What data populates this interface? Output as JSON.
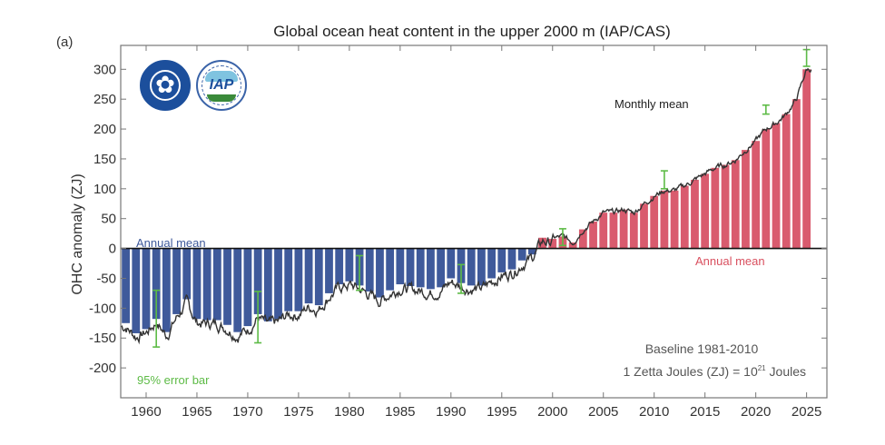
{
  "panel_label": "(a)",
  "logos": {
    "cas": "cas-emblem",
    "iap": "IAP"
  },
  "chart_data": {
    "type": "bar",
    "title": "Global ocean heat content in the upper 2000 m (IAP/CAS)",
    "xlabel": "",
    "ylabel": "OHC anomaly (ZJ)",
    "xlim": [
      1957.5,
      2027
    ],
    "ylim": [
      -250,
      340
    ],
    "xticks": [
      1960,
      1965,
      1970,
      1975,
      1980,
      1985,
      1990,
      1995,
      2000,
      2005,
      2010,
      2015,
      2020,
      2025
    ],
    "yticks": [
      -200,
      -150,
      -100,
      -50,
      0,
      50,
      100,
      150,
      200,
      250,
      300
    ],
    "grid": false,
    "categories": [
      1958,
      1959,
      1960,
      1961,
      1962,
      1963,
      1964,
      1965,
      1966,
      1967,
      1968,
      1969,
      1970,
      1971,
      1972,
      1973,
      1974,
      1975,
      1976,
      1977,
      1978,
      1979,
      1980,
      1981,
      1982,
      1983,
      1984,
      1985,
      1986,
      1987,
      1988,
      1989,
      1990,
      1991,
      1992,
      1993,
      1994,
      1995,
      1996,
      1997,
      1998,
      1999,
      2000,
      2001,
      2002,
      2003,
      2004,
      2005,
      2006,
      2007,
      2008,
      2009,
      2010,
      2011,
      2012,
      2013,
      2014,
      2015,
      2016,
      2017,
      2018,
      2019,
      2020,
      2021,
      2022,
      2023,
      2024,
      2025
    ],
    "series": [
      {
        "name": "Annual mean",
        "values": [
          -125,
          -142,
          -135,
          -118,
          -140,
          -110,
          -85,
          -118,
          -120,
          -120,
          -128,
          -140,
          -130,
          -110,
          -122,
          -118,
          -105,
          -105,
          -92,
          -95,
          -75,
          -60,
          -55,
          -62,
          -72,
          -82,
          -70,
          -60,
          -63,
          -65,
          -68,
          -65,
          -50,
          -58,
          -62,
          -62,
          -50,
          -40,
          -35,
          -20,
          -10,
          18,
          16,
          20,
          10,
          32,
          45,
          60,
          60,
          65,
          60,
          75,
          88,
          97,
          97,
          105,
          115,
          125,
          135,
          140,
          148,
          165,
          180,
          200,
          210,
          225,
          250,
          300
        ]
      }
    ],
    "monthly_series": {
      "name": "Monthly mean"
    },
    "error_bars": {
      "name": "95% error bar",
      "points": [
        {
          "x": 1961,
          "y": -115,
          "low": -165,
          "high": -70
        },
        {
          "x": 1971,
          "y": -115,
          "low": -158,
          "high": -72
        },
        {
          "x": 1981,
          "y": -40,
          "low": -70,
          "high": -12
        },
        {
          "x": 1991,
          "y": -50,
          "low": -75,
          "high": -27
        },
        {
          "x": 2001,
          "y": 20,
          "low": 5,
          "high": 33
        },
        {
          "x": 2011,
          "y": 115,
          "low": 100,
          "high": 130
        },
        {
          "x": 2021,
          "y": 235,
          "low": 225,
          "high": 240
        },
        {
          "x": 2025,
          "y": 322,
          "low": 305,
          "high": 333
        }
      ]
    },
    "colors": {
      "negative": "#3f5a9b",
      "positive": "#d95b6e",
      "line": "#333333",
      "error": "#5dbb46",
      "zero": "#111111"
    },
    "annotations": {
      "annual_mean_neg": "Annual mean",
      "annual_mean_pos": "Annual mean",
      "monthly_mean": "Monthly mean",
      "error_bar": "95% error bar",
      "baseline": "Baseline 1981-2010",
      "units_prefix": "1 Zetta Joules (ZJ) = 10",
      "units_exp": "21",
      "units_suffix": " Joules"
    }
  }
}
